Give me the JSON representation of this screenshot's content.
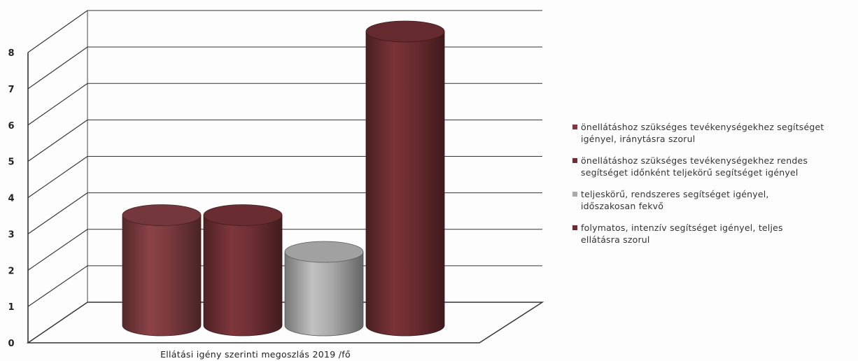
{
  "chart_data": {
    "type": "bar",
    "style": "3d-cylinder",
    "categories": [
      "Ellátási igény szerinti megoszlás 2019 /fő"
    ],
    "series": [
      {
        "name": "önellátáshoz szükséges tevékenységekhez segítséget igényel, iránytásra szorul",
        "values": [
          3
        ],
        "color": "#7a3a3e"
      },
      {
        "name": "önellátáshoz szükséges tevékenységekhez rendes segítséget időnként teljekörű segítséget igényel",
        "values": [
          3
        ],
        "color": "#6e2f34"
      },
      {
        "name": "teljeskörű, rendszeres segítséget igényel, időszakosan fekvő",
        "values": [
          2
        ],
        "color": "#a9a9a9"
      },
      {
        "name": "folymatos, intenzív segítséget igényel, teljes ellátásra szorul",
        "values": [
          8
        ],
        "color": "#6a2c30"
      }
    ],
    "y_ticks": [
      "0",
      "1",
      "2",
      "3",
      "4",
      "5",
      "6",
      "7",
      "8"
    ],
    "ylim": [
      0,
      8
    ],
    "grid": true,
    "legend_position": "right"
  }
}
